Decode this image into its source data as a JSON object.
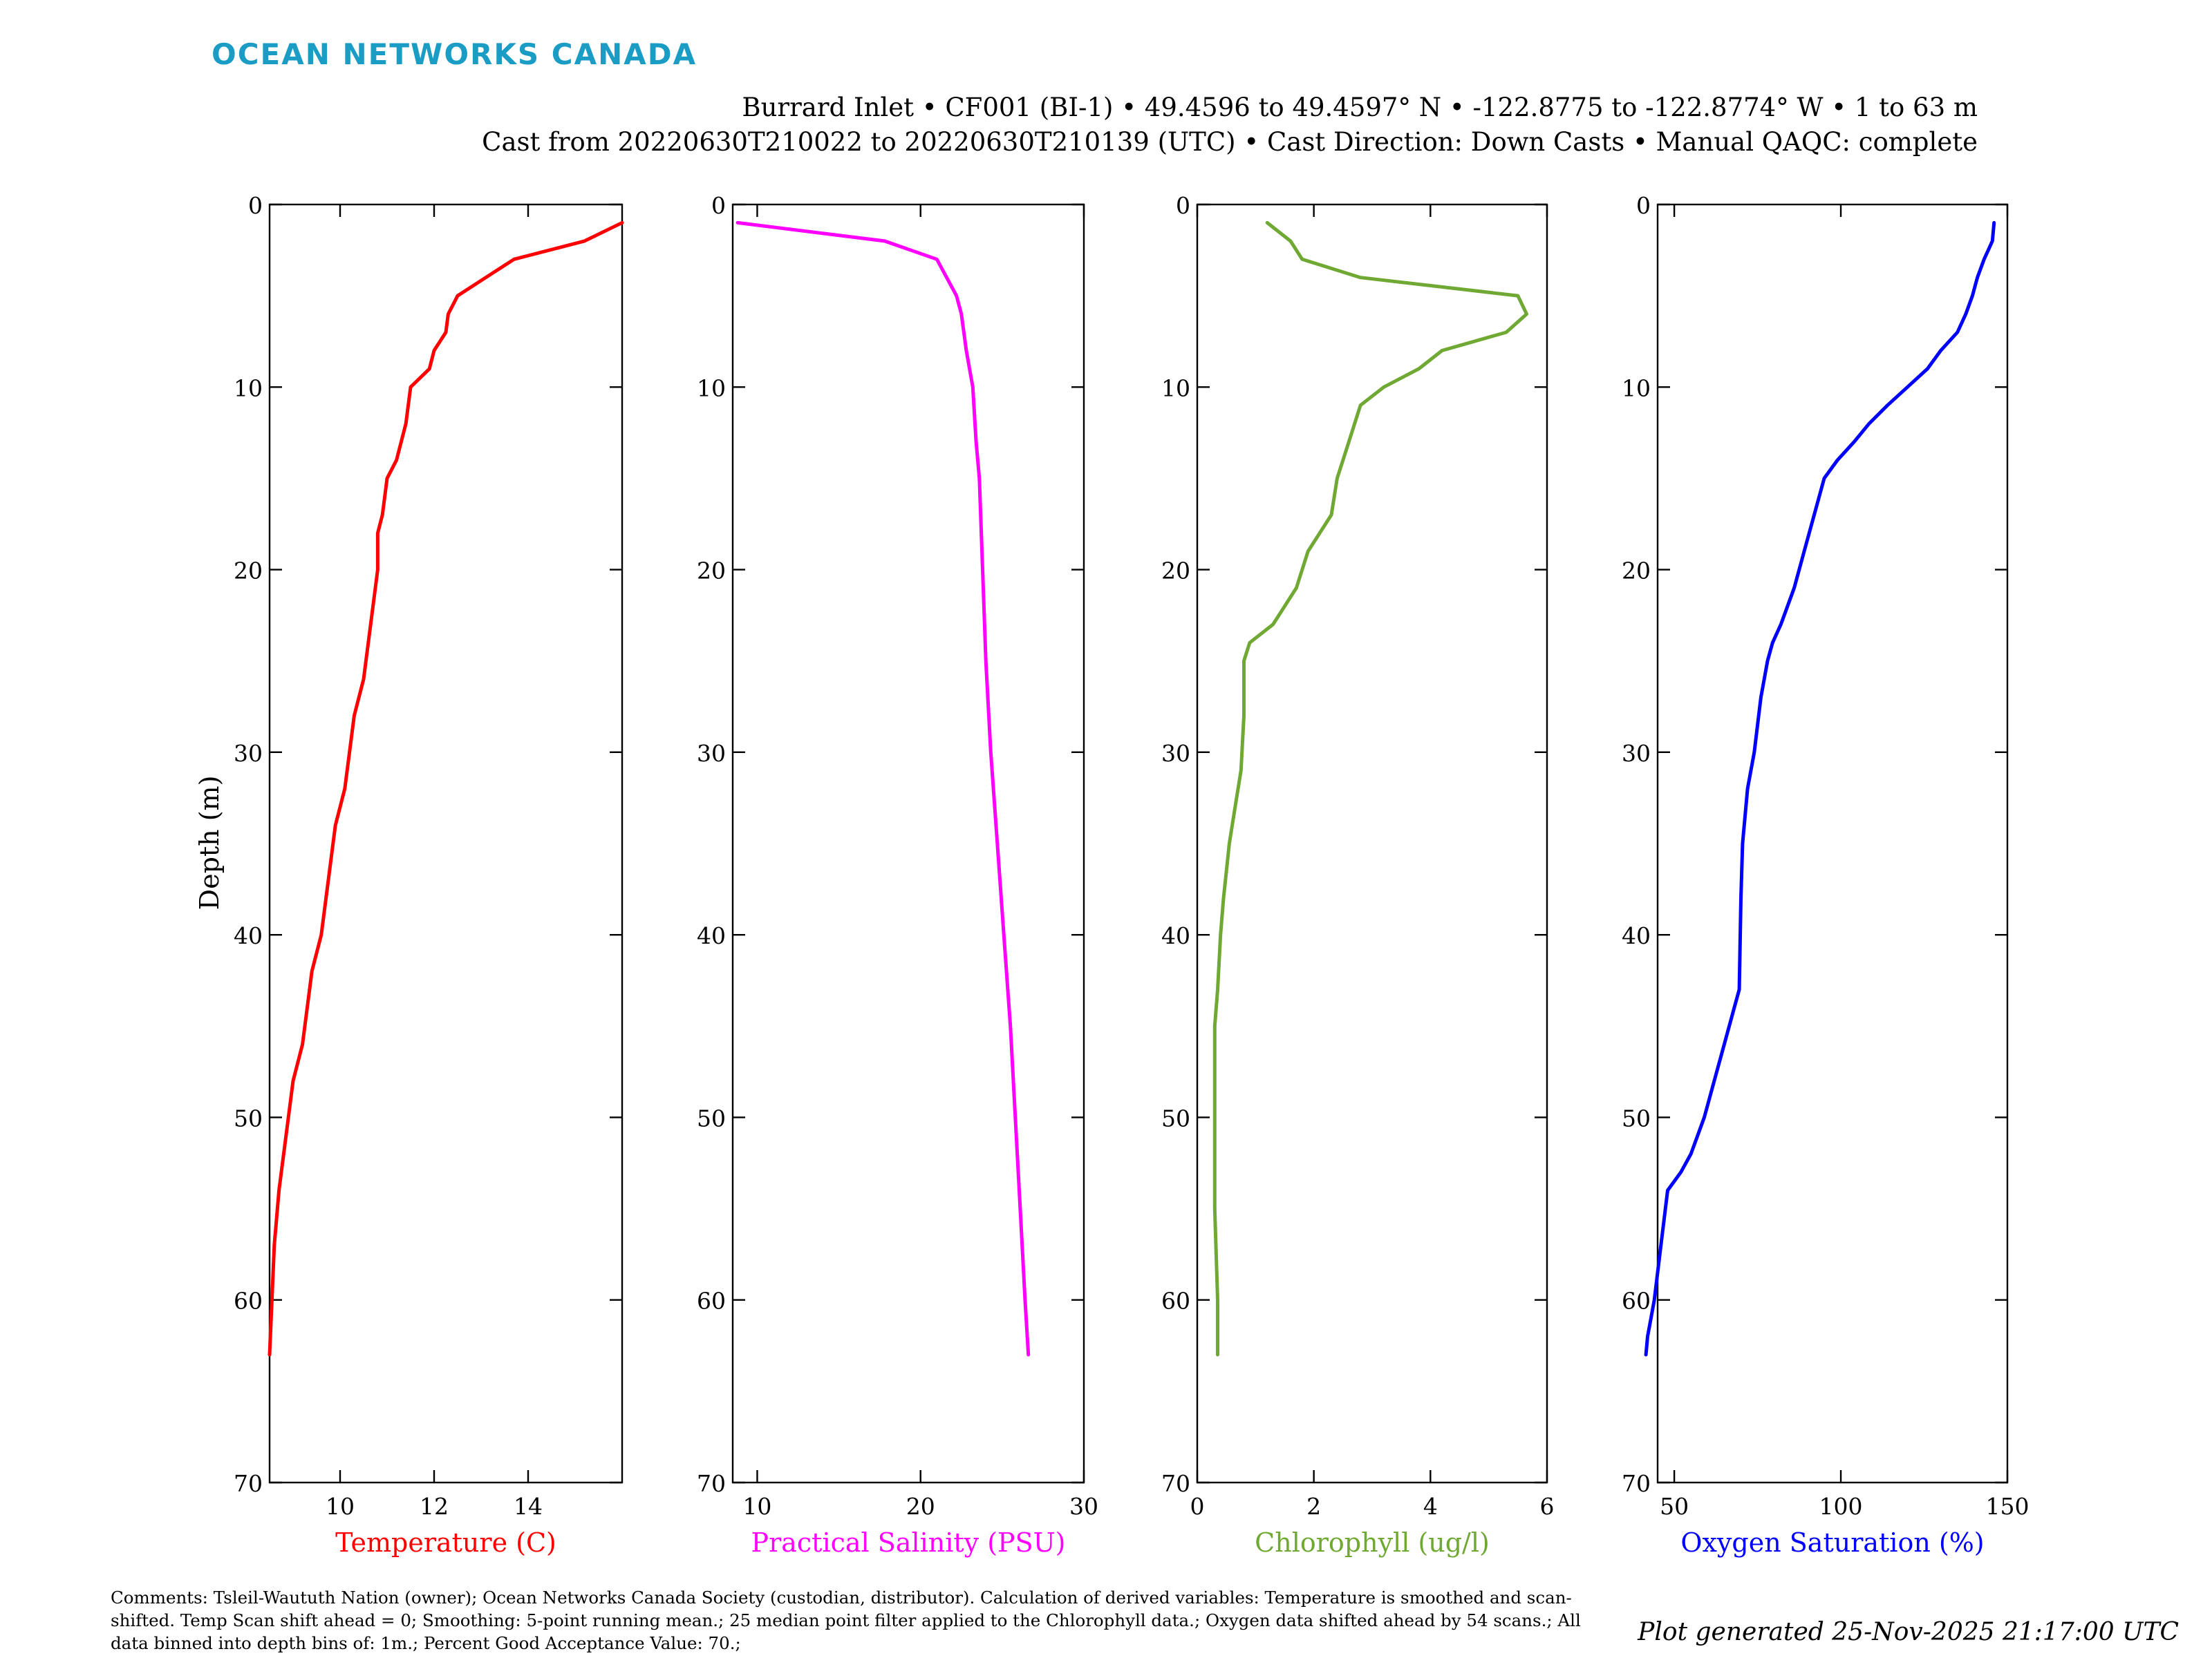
{
  "brand": {
    "name": "OCEAN NETWORKS CANADA",
    "color": "#1a9cc4"
  },
  "header": {
    "line1": "Burrard Inlet • CF001 (BI-1) • 49.4596 to 49.4597° N • -122.8775 to -122.8774° W • 1 to 63 m",
    "line2": "Cast from 20220630T210022 to 20220630T210139 (UTC) • Cast Direction: Down Casts • Manual QAQC: complete"
  },
  "chart_data": {
    "type": "line",
    "shared_y": {
      "label": "Depth (m)",
      "ylim": [
        0,
        70
      ],
      "inverted": true,
      "ticks": [
        0,
        10,
        20,
        30,
        40,
        50,
        60,
        70
      ]
    },
    "panels": [
      {
        "id": "temperature",
        "xlabel": "Temperature (C)",
        "color": "#ff0000",
        "xlim": [
          8.5,
          16
        ],
        "xticks": [
          10,
          12,
          14
        ],
        "points": [
          [
            16.0,
            1
          ],
          [
            15.2,
            2
          ],
          [
            13.7,
            3
          ],
          [
            13.1,
            4
          ],
          [
            12.5,
            5
          ],
          [
            12.4,
            5.5
          ],
          [
            12.3,
            6
          ],
          [
            12.25,
            7
          ],
          [
            12.0,
            8
          ],
          [
            11.9,
            9
          ],
          [
            11.5,
            10
          ],
          [
            11.4,
            12
          ],
          [
            11.2,
            14
          ],
          [
            11.0,
            15
          ],
          [
            10.9,
            17
          ],
          [
            10.8,
            18
          ],
          [
            10.8,
            20
          ],
          [
            10.7,
            22
          ],
          [
            10.6,
            24
          ],
          [
            10.5,
            26
          ],
          [
            10.3,
            28
          ],
          [
            10.2,
            30
          ],
          [
            10.1,
            32
          ],
          [
            9.9,
            34
          ],
          [
            9.8,
            36
          ],
          [
            9.7,
            38
          ],
          [
            9.6,
            40
          ],
          [
            9.4,
            42
          ],
          [
            9.3,
            44
          ],
          [
            9.2,
            46
          ],
          [
            9.0,
            48
          ],
          [
            8.9,
            50
          ],
          [
            8.8,
            52
          ],
          [
            8.7,
            54
          ],
          [
            8.6,
            57
          ],
          [
            8.55,
            60
          ],
          [
            8.5,
            63
          ]
        ]
      },
      {
        "id": "salinity",
        "xlabel": "Practical Salinity (PSU)",
        "color": "#ff00ff",
        "xlim": [
          8.5,
          30
        ],
        "xticks": [
          10,
          20,
          30
        ],
        "points": [
          [
            8.8,
            1
          ],
          [
            17.8,
            2
          ],
          [
            21.0,
            3
          ],
          [
            22.2,
            5
          ],
          [
            22.5,
            6
          ],
          [
            22.8,
            8
          ],
          [
            23.2,
            10
          ],
          [
            23.4,
            13
          ],
          [
            23.6,
            15
          ],
          [
            23.8,
            20
          ],
          [
            24.0,
            25
          ],
          [
            24.3,
            30
          ],
          [
            24.7,
            35
          ],
          [
            25.1,
            40
          ],
          [
            25.5,
            45
          ],
          [
            25.8,
            50
          ],
          [
            26.1,
            55
          ],
          [
            26.4,
            60
          ],
          [
            26.6,
            63
          ]
        ]
      },
      {
        "id": "chlorophyll",
        "xlabel": "Chlorophyll (ug/l)",
        "color": "#6fa832",
        "xlim": [
          0,
          6
        ],
        "xticks": [
          0,
          2,
          4,
          6
        ],
        "points": [
          [
            1.2,
            1
          ],
          [
            1.6,
            2
          ],
          [
            1.8,
            3
          ],
          [
            2.8,
            4
          ],
          [
            5.5,
            5
          ],
          [
            5.65,
            6
          ],
          [
            5.3,
            7
          ],
          [
            4.2,
            8
          ],
          [
            3.8,
            9
          ],
          [
            3.2,
            10
          ],
          [
            2.8,
            11
          ],
          [
            2.7,
            12
          ],
          [
            2.6,
            13
          ],
          [
            2.4,
            15
          ],
          [
            2.3,
            17
          ],
          [
            1.9,
            19
          ],
          [
            1.7,
            21
          ],
          [
            1.3,
            23
          ],
          [
            0.9,
            24
          ],
          [
            0.8,
            25
          ],
          [
            0.8,
            28
          ],
          [
            0.75,
            31
          ],
          [
            0.65,
            33
          ],
          [
            0.55,
            35
          ],
          [
            0.45,
            38
          ],
          [
            0.4,
            40
          ],
          [
            0.35,
            43
          ],
          [
            0.3,
            45
          ],
          [
            0.3,
            50
          ],
          [
            0.3,
            55
          ],
          [
            0.35,
            60
          ],
          [
            0.35,
            63
          ]
        ]
      },
      {
        "id": "oxygen",
        "xlabel": "Oxygen Saturation (%)",
        "color": "#0000ff",
        "xlim": [
          45,
          150
        ],
        "xticks": [
          50,
          100,
          150
        ],
        "points": [
          [
            146.0,
            1
          ],
          [
            145.5,
            2
          ],
          [
            143.0,
            3
          ],
          [
            141.0,
            4
          ],
          [
            139.5,
            5
          ],
          [
            137.5,
            6
          ],
          [
            135.0,
            7
          ],
          [
            130.0,
            8
          ],
          [
            126.0,
            9
          ],
          [
            120.0,
            10
          ],
          [
            114.0,
            11
          ],
          [
            108.5,
            12
          ],
          [
            104.0,
            13
          ],
          [
            99.0,
            14
          ],
          [
            95.0,
            15
          ],
          [
            92.0,
            17
          ],
          [
            89.0,
            19
          ],
          [
            86.0,
            21
          ],
          [
            82.0,
            23
          ],
          [
            79.5,
            24
          ],
          [
            78.0,
            25
          ],
          [
            76.0,
            27
          ],
          [
            74.0,
            30
          ],
          [
            72.0,
            32
          ],
          [
            70.5,
            35
          ],
          [
            70.0,
            38
          ],
          [
            69.5,
            43
          ],
          [
            68.0,
            44
          ],
          [
            65.0,
            46
          ],
          [
            62.0,
            48
          ],
          [
            59.0,
            50
          ],
          [
            55.0,
            52
          ],
          [
            52.0,
            53
          ],
          [
            48.0,
            54
          ],
          [
            46.0,
            57
          ],
          [
            44.0,
            60
          ],
          [
            43.0,
            61
          ],
          [
            42.0,
            62
          ],
          [
            41.5,
            63
          ]
        ]
      }
    ]
  },
  "footer": {
    "comments": "Comments: Tsleil-Waututh Nation (owner); Ocean Networks Canada Society (custodian, distributor). Calculation of derived variables: Temperature is smoothed and scan-shifted. Temp Scan shift ahead = 0; Smoothing: 5-point running mean.; 25 median point filter applied to the Chlorophyll data.; Oxygen data shifted ahead by 54 scans.; All data binned into depth bins of: 1m.; Percent Good Acceptance Value: 70.;",
    "generated": "Plot generated 25-Nov-2025 21:17:00 UTC"
  }
}
